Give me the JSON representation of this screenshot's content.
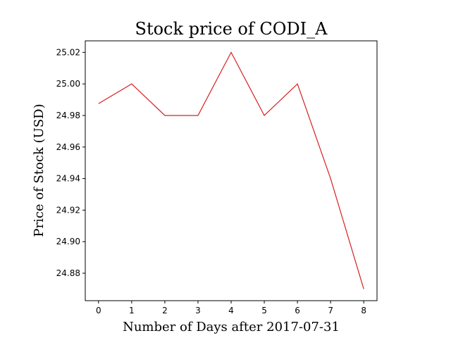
{
  "chart_data": {
    "type": "line",
    "title": "Stock price of CODI_A",
    "xlabel": "Number of Days after 2017-07-31",
    "ylabel": "Price of Stock (USD)",
    "x": [
      0,
      1,
      2,
      3,
      4,
      5,
      6,
      7,
      8
    ],
    "series": [
      {
        "values": [
          24.9875,
          25.0,
          24.98,
          24.98,
          25.02,
          24.98,
          25.0,
          24.94,
          24.87
        ],
        "color": "#d62020"
      }
    ],
    "xlim": [
      -0.4,
      8.4
    ],
    "ylim": [
      24.8626,
      25.0273
    ],
    "xticks": [
      0,
      1,
      2,
      3,
      4,
      5,
      6,
      7,
      8
    ],
    "xtick_labels": [
      "0",
      "1",
      "2",
      "3",
      "4",
      "5",
      "6",
      "7",
      "8"
    ],
    "yticks": [
      24.88,
      24.9,
      24.92,
      24.94,
      24.96,
      24.98,
      25.0,
      25.02
    ],
    "ytick_labels": [
      "24.88",
      "24.90",
      "24.92",
      "24.94",
      "24.96",
      "24.98",
      "25.00",
      "25.02"
    ],
    "grid": false,
    "legend": "none"
  }
}
